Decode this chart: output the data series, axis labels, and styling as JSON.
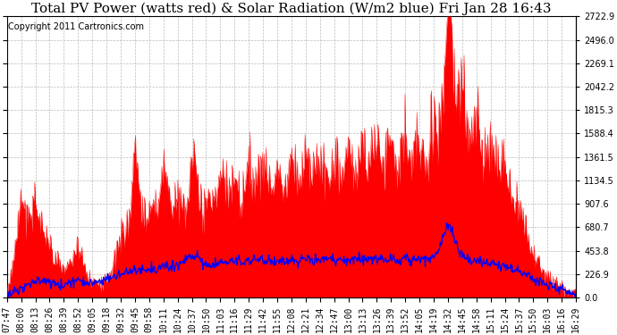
{
  "title": "Total PV Power (watts red) & Solar Radiation (W/m2 blue) Fri Jan 28 16:43",
  "copyright_text": "Copyright 2011 Cartronics.com",
  "background_color": "#ffffff",
  "plot_bg_color": "#ffffff",
  "grid_color": "#bbbbbb",
  "pv_color": "red",
  "solar_color": "blue",
  "ymin": 0.0,
  "ymax": 2722.9,
  "yticks": [
    0.0,
    226.9,
    453.8,
    680.7,
    907.6,
    1134.5,
    1361.5,
    1588.4,
    1815.3,
    2042.2,
    2269.1,
    2496.0,
    2722.9
  ],
  "x_labels": [
    "07:47",
    "08:00",
    "08:13",
    "08:26",
    "08:39",
    "08:52",
    "09:05",
    "09:18",
    "09:32",
    "09:45",
    "09:58",
    "10:11",
    "10:24",
    "10:37",
    "10:50",
    "11:03",
    "11:16",
    "11:29",
    "11:42",
    "11:55",
    "12:08",
    "12:21",
    "12:34",
    "12:47",
    "13:00",
    "13:13",
    "13:26",
    "13:39",
    "13:52",
    "14:05",
    "14:19",
    "14:32",
    "14:45",
    "14:58",
    "15:11",
    "15:24",
    "15:37",
    "15:50",
    "16:03",
    "16:16",
    "16:29"
  ],
  "title_fontsize": 11,
  "copyright_fontsize": 7,
  "tick_fontsize": 7,
  "left_ticks": false,
  "right_ticks": true
}
